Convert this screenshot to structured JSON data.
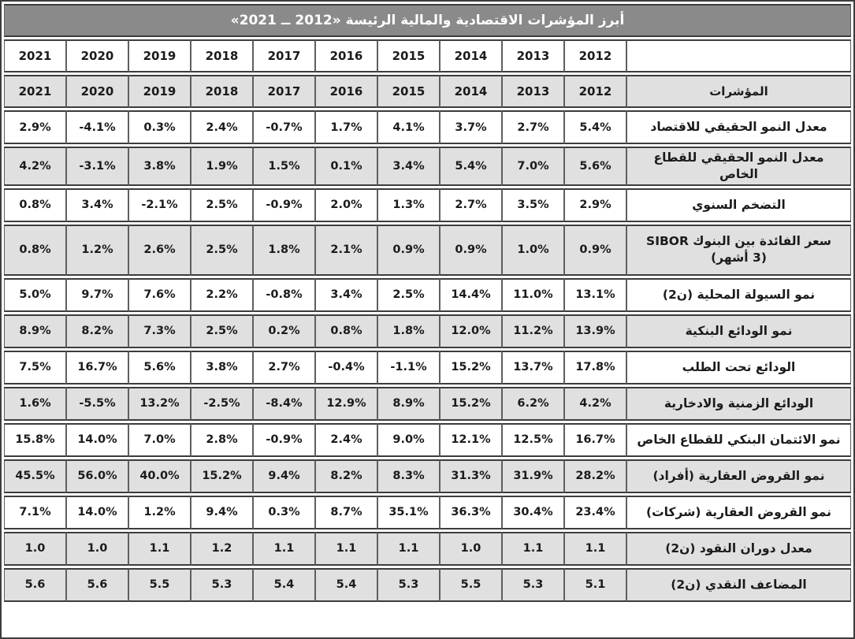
{
  "title": "أبرز المؤشرات الاقتصادية والمالية الرئيسة «2012 ــ 2021»",
  "colors": {
    "title_bg": "#8a8a8a",
    "shaded_row_bg": "#e0e0e0",
    "border_dark": "#3c3c3c",
    "border_light": "#5f5f5f",
    "title_text": "#ffffff",
    "text": "#1b1b1b"
  },
  "chart_data": {
    "type": "table",
    "title": "أبرز المؤشرات الاقتصادية والمالية الرئيسة «2012 ــ 2021»",
    "year_columns": [
      "2021",
      "2020",
      "2019",
      "2018",
      "2017",
      "2016",
      "2015",
      "2014",
      "2013",
      "2012"
    ],
    "year_columns_repeated": true,
    "indicator_column_header": "المؤشرات",
    "rows": [
      {
        "label": "معدل النمو الحقيقي للاقتصاد",
        "values": [
          "2.9%",
          "-4.1%",
          "0.3%",
          "2.4%",
          "-0.7%",
          "1.7%",
          "4.1%",
          "3.7%",
          "2.7%",
          "5.4%"
        ],
        "shaded": false,
        "tall": false
      },
      {
        "label": "معدل النمو الحقيقي للقطاع الخاص",
        "values": [
          "4.2%",
          "-3.1%",
          "3.8%",
          "1.9%",
          "1.5%",
          "0.1%",
          "3.4%",
          "5.4%",
          "7.0%",
          "5.6%"
        ],
        "shaded": true,
        "tall": false
      },
      {
        "label": "التضخم السنوي",
        "values": [
          "0.8%",
          "3.4%",
          "-2.1%",
          "2.5%",
          "-0.9%",
          "2.0%",
          "1.3%",
          "2.7%",
          "3.5%",
          "2.9%"
        ],
        "shaded": false,
        "tall": false
      },
      {
        "label": "سعر الفائدة بين البنوك SIBOR\n(3 أشهر)",
        "values": [
          "0.8%",
          "1.2%",
          "2.6%",
          "2.5%",
          "1.8%",
          "2.1%",
          "0.9%",
          "0.9%",
          "1.0%",
          "0.9%"
        ],
        "shaded": true,
        "tall": true
      },
      {
        "label": "نمو السيولة المحلية (ن2)",
        "values": [
          "5.0%",
          "9.7%",
          "7.6%",
          "2.2%",
          "-0.8%",
          "3.4%",
          "2.5%",
          "14.4%",
          "11.0%",
          "13.1%"
        ],
        "shaded": false,
        "tall": false
      },
      {
        "label": "نمو الودائع البنكية",
        "values": [
          "8.9%",
          "8.2%",
          "7.3%",
          "2.5%",
          "0.2%",
          "0.8%",
          "1.8%",
          "12.0%",
          "11.2%",
          "13.9%"
        ],
        "shaded": true,
        "tall": false
      },
      {
        "label": "الودائع تحت الطلب",
        "values": [
          "7.5%",
          "16.7%",
          "5.6%",
          "3.8%",
          "2.7%",
          "-0.4%",
          "-1.1%",
          "15.2%",
          "13.7%",
          "17.8%"
        ],
        "shaded": false,
        "tall": false
      },
      {
        "label": "الودائع الزمنية والادخارية",
        "values": [
          "1.6%",
          "-5.5%",
          "13.2%",
          "-2.5%",
          "-8.4%",
          "12.9%",
          "8.9%",
          "15.2%",
          "6.2%",
          "4.2%"
        ],
        "shaded": true,
        "tall": false
      },
      {
        "label": "نمو الائتمان البنكي للقطاع الخاص",
        "values": [
          "15.8%",
          "14.0%",
          "7.0%",
          "2.8%",
          "-0.9%",
          "2.4%",
          "9.0%",
          "12.1%",
          "12.5%",
          "16.7%"
        ],
        "shaded": false,
        "tall": false
      },
      {
        "label": "نمو القروض العقارية (أفراد)",
        "values": [
          "45.5%",
          "56.0%",
          "40.0%",
          "15.2%",
          "9.4%",
          "8.2%",
          "8.3%",
          "31.3%",
          "31.9%",
          "28.2%"
        ],
        "shaded": true,
        "tall": false
      },
      {
        "label": "نمو القروض العقارية (شركات)",
        "values": [
          "7.1%",
          "14.0%",
          "1.2%",
          "9.4%",
          "0.3%",
          "8.7%",
          "35.1%",
          "36.3%",
          "30.4%",
          "23.4%"
        ],
        "shaded": false,
        "tall": false
      },
      {
        "label": "معدل دوران النقود (ن2)",
        "values": [
          "1.0",
          "1.0",
          "1.1",
          "1.2",
          "1.1",
          "1.1",
          "1.1",
          "1.0",
          "1.1",
          "1.1"
        ],
        "shaded": true,
        "tall": false
      },
      {
        "label": "المضاعف النقدي (ن2)",
        "values": [
          "5.6",
          "5.6",
          "5.5",
          "5.3",
          "5.4",
          "5.4",
          "5.3",
          "5.5",
          "5.3",
          "5.1"
        ],
        "shaded": true,
        "tall": false
      }
    ]
  }
}
